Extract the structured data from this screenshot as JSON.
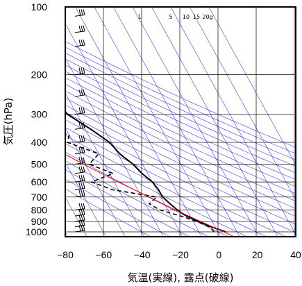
{
  "chart_data": {
    "type": "skew-t",
    "title": "",
    "xlabel": "気温(実線), 露点(破線)",
    "ylabel": "気圧(hPa)",
    "x_ticks": [
      -80,
      -60,
      -40,
      -20,
      0,
      20,
      40
    ],
    "y_ticks": [
      100,
      200,
      300,
      400,
      500,
      600,
      700,
      800,
      900,
      1000
    ],
    "y_scale": "log",
    "xlim": [
      -80,
      40
    ],
    "ylim": [
      1050,
      100
    ],
    "mixing_ratio_labels": [
      "1",
      "5",
      "10",
      "15",
      "20g"
    ],
    "series": [
      {
        "values": [
          [
            1000,
            4
          ],
          [
            950,
            -2
          ],
          [
            900,
            -7
          ],
          [
            850,
            -12
          ],
          [
            800,
            -15
          ],
          [
            750,
            -17
          ],
          [
            700,
            -19
          ],
          [
            650,
            -19
          ],
          [
            600,
            -20
          ],
          [
            550,
            -23
          ],
          [
            500,
            -25
          ],
          [
            450,
            -29
          ],
          [
            400,
            -31
          ],
          [
            350,
            -37
          ],
          [
            300,
            -45
          ],
          [
            250,
            -47
          ],
          [
            200,
            -47
          ],
          [
            150,
            -53
          ],
          [
            120,
            -58
          ],
          [
            100,
            -60
          ]
        ]
      },
      {
        "values": [
          [
            1000,
            -2
          ],
          [
            950,
            -3
          ],
          [
            900,
            -8
          ],
          [
            850,
            -15
          ],
          [
            800,
            -24
          ],
          [
            750,
            -28
          ],
          [
            700,
            -22
          ],
          [
            650,
            -43
          ],
          [
            600,
            -52
          ],
          [
            550,
            -38
          ],
          [
            500,
            -48
          ],
          [
            450,
            -40
          ],
          [
            400,
            -53
          ],
          [
            370,
            -50
          ],
          [
            350,
            -65
          ]
        ]
      },
      {
        "values": [
          [
            1050,
            7
          ],
          [
            1000,
            3
          ],
          [
            900,
            -6
          ],
          [
            800,
            -16
          ],
          [
            700,
            -26
          ],
          [
            600,
            -38
          ],
          [
            500,
            -51
          ],
          [
            400,
            -66
          ],
          [
            300,
            -86
          ]
        ]
      }
    ],
    "wind_barbs": [
      {
        "p": 1000
      },
      {
        "p": 950
      },
      {
        "p": 900
      },
      {
        "p": 850
      },
      {
        "p": 800
      },
      {
        "p": 700
      },
      {
        "p": 650
      },
      {
        "p": 600
      },
      {
        "p": 550
      },
      {
        "p": 500
      },
      {
        "p": 450
      },
      {
        "p": 400
      },
      {
        "p": 350
      },
      {
        "p": 300
      },
      {
        "p": 250
      },
      {
        "p": 200
      },
      {
        "p": 150
      },
      {
        "p": 130
      },
      {
        "p": 110
      }
    ],
    "colors": {
      "temperature": "#000000",
      "dewpoint": "#000000",
      "parcel": "#ff0000",
      "isotherm": "#3c3cff",
      "grid": "#000000"
    }
  }
}
